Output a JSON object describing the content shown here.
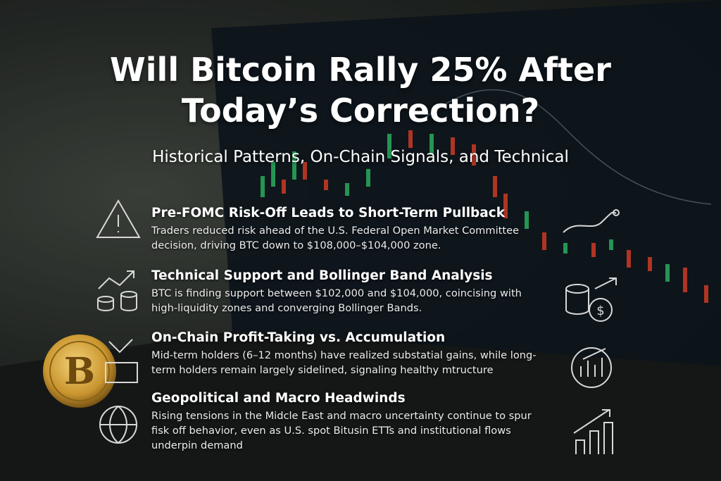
{
  "title": [
    "Will Bitcoin Rally 25% After",
    "Today’s Correction?"
  ],
  "subtitle": "Historical Patterns, On-Chain Signals, and Technical",
  "sections": [
    {
      "heading": "Pre-FOMC Risk-Off Leads to Short-Term Pullback",
      "body": "Traders reduced risk ahead of the U.S. Federal Open Market Committee decision, driving BTC down to $108,000–$104,000 zone."
    },
    {
      "heading": "Technical Support and Bollinger Band Analysis",
      "body": "BTC is finding support between $102,000 and $104,000, coincising with high-liquidity zones and converging Bollinger Bands."
    },
    {
      "heading": "On-Chain Profit-Taking vs. Accumulation",
      "body": "Mid-term holders (6–12 months) have realized substatial gains, while long-term holders remain largely sidelined, signaling healthy mtructure"
    },
    {
      "heading": "Geopolitical and Macro Headwinds",
      "body": "Rising tensions in the Midcle East and macro uncertainty continue to spur fisk off behavior, even as U.S. spot Bitusin ETTs and institutional flows underpin demand"
    }
  ]
}
